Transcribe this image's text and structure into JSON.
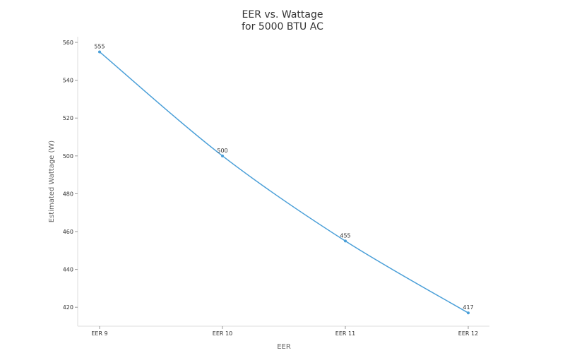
{
  "chart_data": {
    "type": "line",
    "title_lines": [
      "EER vs. Wattage",
      "for 5000 BTU AC"
    ],
    "xlabel": "EER",
    "ylabel": "Estimated Wattage (W)",
    "categories": [
      "EER 9",
      "EER 10",
      "EER 11",
      "EER 12"
    ],
    "series": [
      {
        "values": [
          555,
          500,
          455,
          417
        ],
        "color": "#4a9fd8"
      }
    ],
    "yticks": [
      420,
      440,
      460,
      480,
      500,
      520,
      540,
      560
    ],
    "ylim": [
      410,
      563
    ],
    "grid": false,
    "legend": "none"
  }
}
